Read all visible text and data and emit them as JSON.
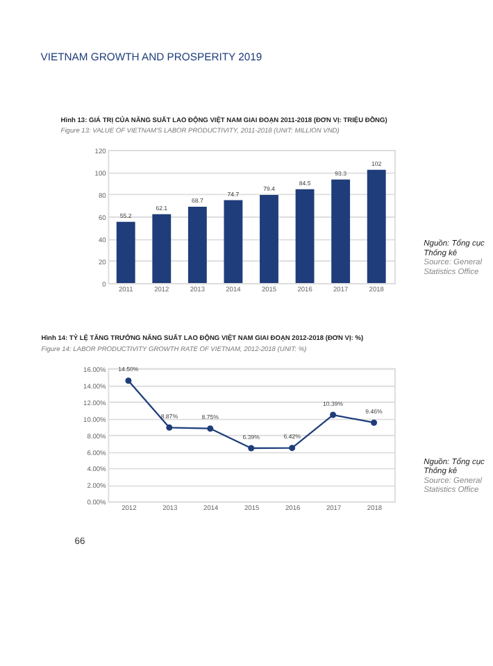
{
  "chart_data": [
    {
      "type": "bar",
      "title": "Hình 13: GIÁ TRỊ CỦA NĂNG SUẤT LAO ĐỘNG VIỆT NAM GIAI ĐOẠN 2011-2018 (ĐƠN VỊ: TRIỆU ĐỒNG)",
      "subtitle": "Figure 13: VALUE OF VIETNAM'S LABOR PRODUCTIVITY, 2011-2018 (UNIT: MILLION VND)",
      "categories": [
        "2011",
        "2012",
        "2013",
        "2014",
        "2015",
        "2016",
        "2017",
        "2018"
      ],
      "values": [
        55.2,
        62.1,
        68.7,
        74.7,
        79.4,
        84.5,
        93.3,
        102
      ],
      "color": "#1f3d7a",
      "ylim": [
        0,
        120
      ],
      "yticks": [
        0,
        20,
        40,
        60,
        80,
        100,
        120
      ],
      "grid": "y",
      "data_labels": true,
      "annotations": [
        "VIETNAM GROWTH AND PROSPERITY 2019",
        "Nguồn: Tổng cục Thống kê",
        "Source: General Statistics Office"
      ]
    },
    {
      "type": "line",
      "title": "Hình 14: TỶ LỆ TĂNG TRƯỞNG NĂNG SUẤT LAO ĐỘNG VIỆT NAM GIAI ĐOẠN 2012-2018 (ĐƠN VỊ: %)",
      "subtitle": "Figure 14: LABOR PRODUCTIVITY GROWTH RATE OF VIETNAM, 2012-2018 (UNIT: %)",
      "categories": [
        "2012",
        "2013",
        "2014",
        "2015",
        "2016",
        "2017",
        "2018"
      ],
      "values": [
        14.5,
        8.87,
        8.75,
        6.39,
        6.42,
        10.39,
        9.46
      ],
      "color": "#1f3d7a",
      "marker": "circle",
      "line_style": "solid",
      "value_labels": [
        "14.50%",
        "8.87%",
        "8.75%",
        "6.39%",
        "6.42%",
        "10.39%",
        "9.46%"
      ],
      "ylim": [
        0,
        16
      ],
      "yticks": [
        {
          "value": 0,
          "label": "0.00%"
        },
        {
          "value": 2,
          "label": "2.00%"
        },
        {
          "value": 4,
          "label": "4.00%"
        },
        {
          "value": 6,
          "label": "6.00%"
        },
        {
          "value": 8,
          "label": "8.00%"
        },
        {
          "value": 10,
          "label": "10.00%"
        },
        {
          "value": 12,
          "label": "12.00%"
        },
        {
          "value": 14,
          "label": "14.00%"
        },
        {
          "value": 16,
          "label": "16.00%"
        }
      ],
      "grid": "y",
      "annotations": [
        "Nguồn: Tổng cục Thống kê",
        "Source: General Statistics Office",
        "66"
      ]
    }
  ]
}
